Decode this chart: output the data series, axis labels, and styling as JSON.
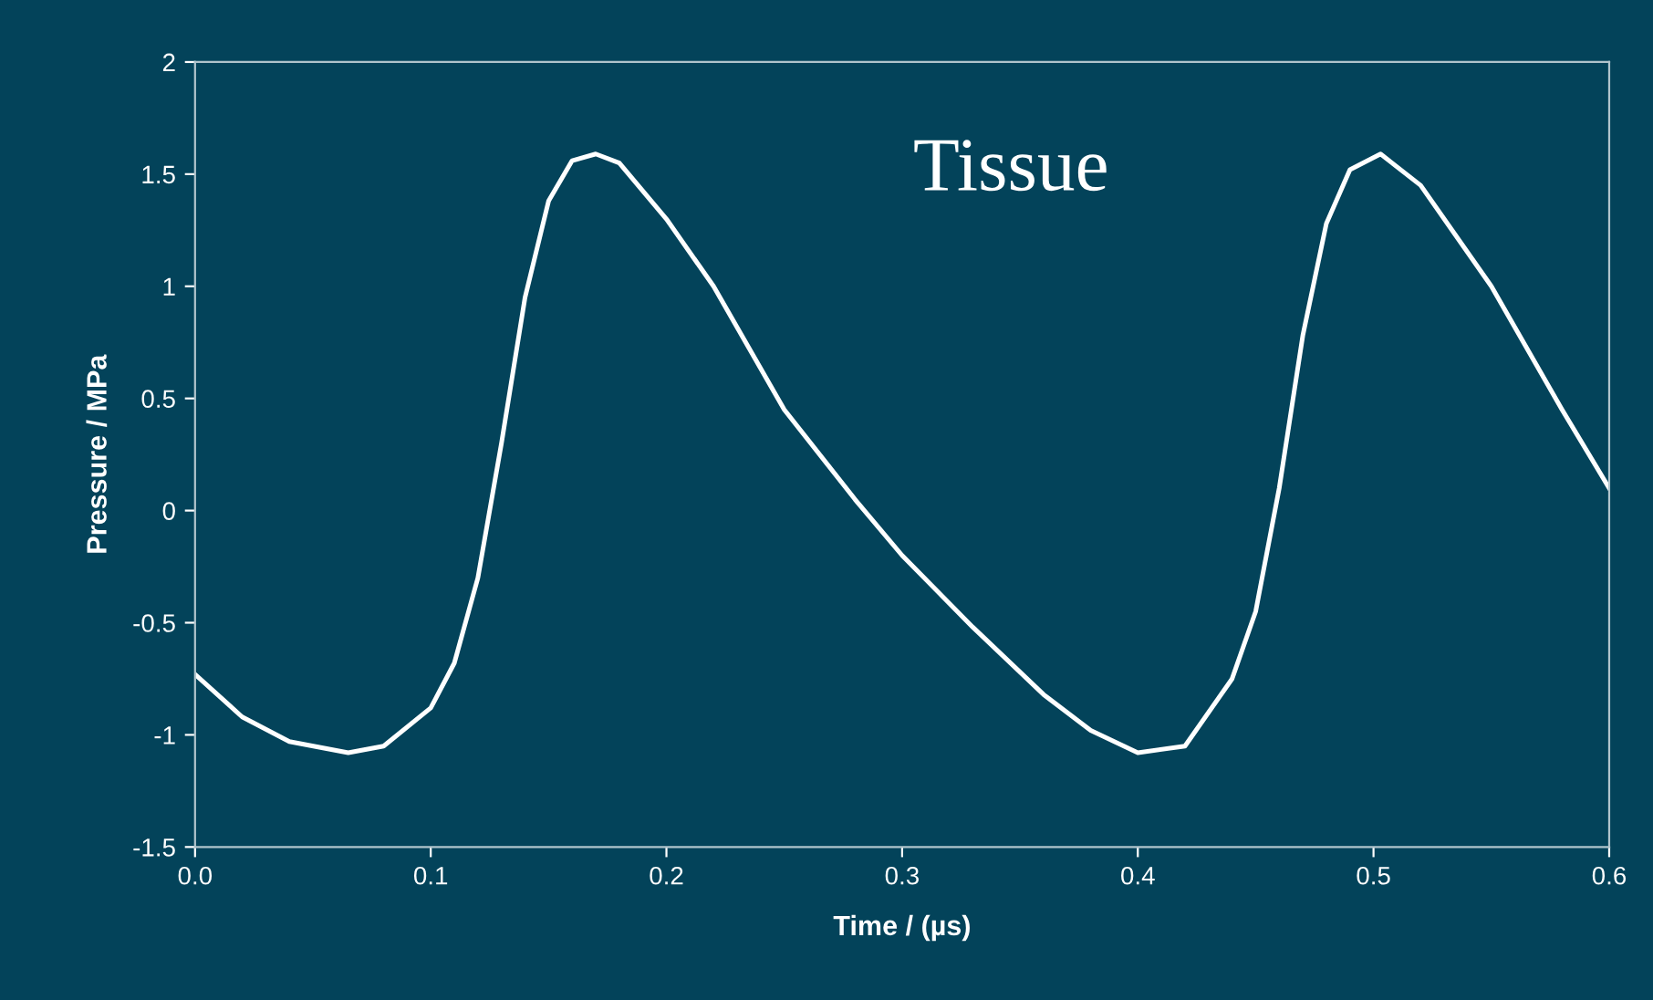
{
  "chart_data": {
    "type": "line",
    "xlabel": "Time / (µs)",
    "ylabel": "Pressure / MPa",
    "annotations": [
      "Tissue"
    ],
    "series": [
      {
        "color": "#ffffff",
        "x": [
          0,
          0.02,
          0.04,
          0.065,
          0.08,
          0.1,
          0.11,
          0.12,
          0.13,
          0.14,
          0.15,
          0.16,
          0.17,
          0.18,
          0.2,
          0.22,
          0.25,
          0.28,
          0.3,
          0.33,
          0.36,
          0.38,
          0.4,
          0.42,
          0.44,
          0.45,
          0.46,
          0.47,
          0.48,
          0.49,
          0.503,
          0.52,
          0.55,
          0.58,
          0.6
        ],
        "values": [
          -0.73,
          -0.92,
          -1.03,
          -1.08,
          -1.05,
          -0.88,
          -0.68,
          -0.3,
          0.3,
          0.95,
          1.38,
          1.56,
          1.59,
          1.55,
          1.3,
          1.0,
          0.45,
          0.05,
          -0.2,
          -0.52,
          -0.82,
          -0.98,
          -1.08,
          -1.05,
          -0.75,
          -0.45,
          0.1,
          0.78,
          1.28,
          1.52,
          1.59,
          1.45,
          1.0,
          0.45,
          0.1
        ]
      }
    ],
    "xlim": [
      0.0,
      0.6
    ],
    "xticks": [
      {
        "value": 0,
        "label": "0.0"
      },
      0.1,
      0.2,
      0.3,
      0.4,
      0.5,
      0.6
    ],
    "ylim": [
      -1.5,
      2
    ],
    "yticks": [
      -1.5,
      -1,
      -0.5,
      0,
      0.5,
      1,
      1.5,
      2
    ],
    "grid": false,
    "legend": false,
    "marker": "none",
    "line_style": "solid"
  }
}
